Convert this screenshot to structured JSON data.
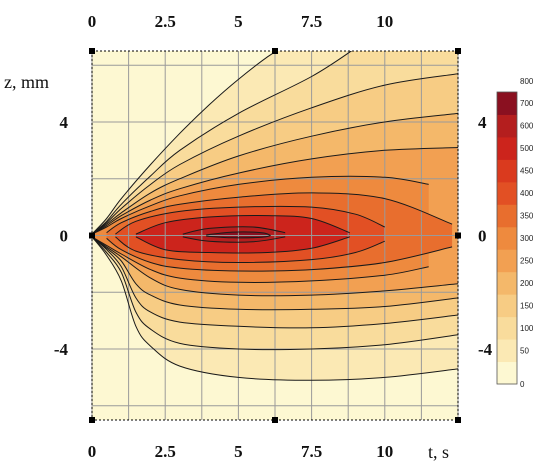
{
  "chart_data": {
    "type": "contour",
    "xlabel": "t, s",
    "ylabel": "z, mm",
    "xlim": [
      0,
      12.5
    ],
    "ylim": [
      -6.5,
      6.5
    ],
    "x_ticks": [
      "0",
      "2.5",
      "5",
      "7.5",
      "10"
    ],
    "y_ticks": [
      "-4",
      "0",
      "4"
    ],
    "grid": true,
    "colorbar": {
      "levels": [
        0,
        50,
        100,
        150,
        200,
        250,
        300,
        350,
        400,
        450,
        500,
        600,
        700,
        800
      ],
      "labels": [
        "0",
        "50",
        "100",
        "150",
        "200",
        "250",
        "300",
        "350",
        "400",
        "450",
        "500",
        "600",
        "700",
        "800"
      ],
      "colors": [
        "#fdf8d2",
        "#fbe9b4",
        "#f9dc9c",
        "#f7cc84",
        "#f4b86a",
        "#f2a052",
        "#ee8a3e",
        "#e86e2e",
        "#e25024",
        "#da3a1e",
        "#cc241c",
        "#b41e1e",
        "#8a1020"
      ]
    },
    "series": [
      {
        "level": 50,
        "upper": [
          [
            0,
            0.05
          ],
          [
            0.5,
            0.6
          ],
          [
            1,
            1.3
          ],
          [
            2,
            2.5
          ],
          [
            3,
            3.6
          ],
          [
            4,
            4.6
          ],
          [
            5,
            5.5
          ],
          [
            6,
            6.3
          ],
          [
            6.5,
            6.6
          ]
        ],
        "lower": [
          [
            0,
            -0.05
          ],
          [
            0.5,
            -0.7
          ],
          [
            1,
            -1.6
          ],
          [
            1.5,
            -3.2
          ],
          [
            2,
            -3.9
          ],
          [
            3,
            -4.6
          ],
          [
            5,
            -5.0
          ],
          [
            7.5,
            -5.1
          ],
          [
            10,
            -5.0
          ],
          [
            12.5,
            -4.7
          ]
        ]
      },
      {
        "level": 100,
        "upper": [
          [
            0,
            0.05
          ],
          [
            0.5,
            0.5
          ],
          [
            1,
            1.1
          ],
          [
            2,
            2.1
          ],
          [
            3,
            3.0
          ],
          [
            5,
            4.3
          ],
          [
            7.5,
            5.6
          ],
          [
            9,
            6.6
          ]
        ],
        "lower": [
          [
            0,
            -0.05
          ],
          [
            0.5,
            -0.6
          ],
          [
            1,
            -1.3
          ],
          [
            1.5,
            -2.7
          ],
          [
            2,
            -3.3
          ],
          [
            3,
            -3.8
          ],
          [
            5,
            -4.0
          ],
          [
            7.5,
            -4.0
          ],
          [
            10,
            -3.85
          ],
          [
            12.5,
            -3.5
          ]
        ]
      },
      {
        "level": 150,
        "upper": [
          [
            0,
            0.05
          ],
          [
            0.5,
            0.45
          ],
          [
            1,
            0.95
          ],
          [
            2,
            1.8
          ],
          [
            3,
            2.5
          ],
          [
            5,
            3.5
          ],
          [
            7.5,
            4.5
          ],
          [
            10,
            5.3
          ],
          [
            12.5,
            5.7
          ]
        ],
        "lower": [
          [
            0,
            -0.05
          ],
          [
            0.5,
            -0.5
          ],
          [
            1,
            -1.1
          ],
          [
            1.5,
            -2.2
          ],
          [
            2,
            -2.7
          ],
          [
            3,
            -3.05
          ],
          [
            5,
            -3.2
          ],
          [
            7.5,
            -3.25
          ],
          [
            10,
            -3.1
          ],
          [
            12.5,
            -2.8
          ]
        ]
      },
      {
        "level": 200,
        "upper": [
          [
            0,
            0.05
          ],
          [
            0.5,
            0.4
          ],
          [
            1,
            0.8
          ],
          [
            2,
            1.5
          ],
          [
            3,
            2.0
          ],
          [
            5,
            2.8
          ],
          [
            7.5,
            3.5
          ],
          [
            10,
            4.0
          ],
          [
            12.5,
            4.3
          ]
        ],
        "lower": [
          [
            0,
            -0.05
          ],
          [
            0.5,
            -0.45
          ],
          [
            1,
            -0.9
          ],
          [
            1.5,
            -1.7
          ],
          [
            2,
            -2.1
          ],
          [
            3,
            -2.45
          ],
          [
            5,
            -2.6
          ],
          [
            7.5,
            -2.6
          ],
          [
            10,
            -2.5
          ],
          [
            12.5,
            -2.2
          ]
        ]
      },
      {
        "level": 250,
        "upper": [
          [
            0,
            0.05
          ],
          [
            0.5,
            0.35
          ],
          [
            1,
            0.7
          ],
          [
            2,
            1.25
          ],
          [
            3,
            1.65
          ],
          [
            5,
            2.2
          ],
          [
            7.5,
            2.7
          ],
          [
            10,
            3.0
          ],
          [
            12.5,
            3.1
          ]
        ],
        "lower": [
          [
            0,
            -0.05
          ],
          [
            0.5,
            -0.4
          ],
          [
            1,
            -0.75
          ],
          [
            2,
            -1.5
          ],
          [
            3,
            -1.9
          ],
          [
            5,
            -2.1
          ],
          [
            7.5,
            -2.1
          ],
          [
            10,
            -1.95
          ],
          [
            12.5,
            -1.7
          ]
        ]
      },
      {
        "level": 300,
        "upper": [
          [
            0,
            0.05
          ],
          [
            0.5,
            0.3
          ],
          [
            1,
            0.6
          ],
          [
            2,
            1.05
          ],
          [
            3,
            1.4
          ],
          [
            5,
            1.8
          ],
          [
            7.5,
            2.05
          ],
          [
            10,
            2.05
          ],
          [
            11.5,
            1.8
          ]
        ],
        "lower": [
          [
            0,
            -0.05
          ],
          [
            0.5,
            -0.35
          ],
          [
            1,
            -0.65
          ],
          [
            2,
            -1.2
          ],
          [
            3,
            -1.5
          ],
          [
            5,
            -1.65
          ],
          [
            7.5,
            -1.6
          ],
          [
            10,
            -1.4
          ],
          [
            11.5,
            -1.1
          ]
        ]
      },
      {
        "level": 350,
        "upper": [
          [
            0.5,
            0.1
          ],
          [
            1,
            0.45
          ],
          [
            2,
            0.85
          ],
          [
            3,
            1.1
          ],
          [
            5,
            1.35
          ],
          [
            7.5,
            1.5
          ],
          [
            10,
            1.3
          ],
          [
            12.3,
            0.4
          ]
        ],
        "lower": [
          [
            0.5,
            -0.1
          ],
          [
            1,
            -0.5
          ],
          [
            2,
            -0.95
          ],
          [
            3,
            -1.15
          ],
          [
            5,
            -1.25
          ],
          [
            7.5,
            -1.2
          ],
          [
            10,
            -0.95
          ],
          [
            12.3,
            -0.4
          ]
        ]
      },
      {
        "level": 400,
        "upper": [
          [
            0.8,
            0.05
          ],
          [
            1.5,
            0.5
          ],
          [
            3,
            0.85
          ],
          [
            5,
            1.0
          ],
          [
            7.5,
            1.0
          ],
          [
            9,
            0.75
          ],
          [
            10,
            0.3
          ]
        ],
        "lower": [
          [
            0.8,
            -0.05
          ],
          [
            1.5,
            -0.55
          ],
          [
            3,
            -0.85
          ],
          [
            5,
            -0.95
          ],
          [
            7.5,
            -0.85
          ],
          [
            9,
            -0.6
          ],
          [
            10,
            -0.2
          ]
        ]
      },
      {
        "level": 500,
        "upper": [
          [
            1.5,
            0.05
          ],
          [
            2.5,
            0.45
          ],
          [
            4,
            0.65
          ],
          [
            6,
            0.7
          ],
          [
            7.5,
            0.6
          ],
          [
            8.8,
            0.1
          ]
        ],
        "lower": [
          [
            1.5,
            -0.05
          ],
          [
            2.5,
            -0.5
          ],
          [
            4,
            -0.6
          ],
          [
            6,
            -0.6
          ],
          [
            7.5,
            -0.45
          ],
          [
            8.8,
            -0.05
          ]
        ]
      },
      {
        "level": 600,
        "upper": [
          [
            3.1,
            0.05
          ],
          [
            4,
            0.25
          ],
          [
            5.5,
            0.3
          ],
          [
            6.6,
            0.1
          ]
        ],
        "lower": [
          [
            3.1,
            -0.05
          ],
          [
            4,
            -0.2
          ],
          [
            5.5,
            -0.22
          ],
          [
            6.6,
            -0.05
          ]
        ]
      },
      {
        "level": 700,
        "upper": [
          [
            3.9,
            0.02
          ],
          [
            4.8,
            0.12
          ],
          [
            5.8,
            0.1
          ],
          [
            6.1,
            0.0
          ]
        ],
        "lower": [
          [
            3.9,
            -0.02
          ],
          [
            4.8,
            -0.08
          ],
          [
            5.8,
            -0.06
          ],
          [
            6.1,
            0.0
          ]
        ]
      }
    ]
  }
}
